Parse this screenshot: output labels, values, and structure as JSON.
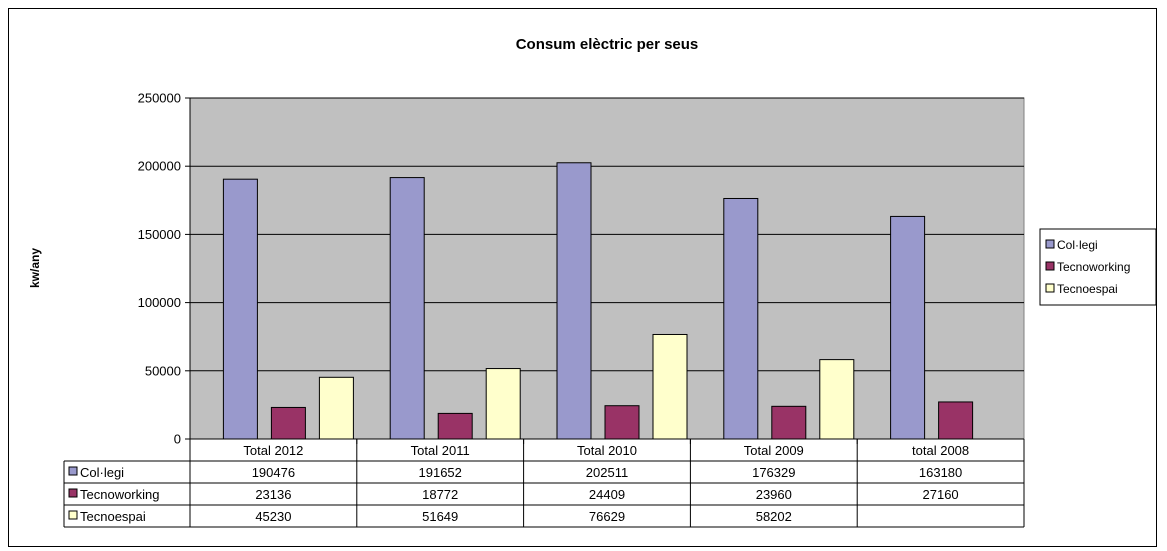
{
  "chart_data": {
    "type": "bar",
    "title": "Consum elèctric per seus",
    "ylabel": "kw/any",
    "xlabel": "",
    "ylim": [
      0,
      250000
    ],
    "yticks": [
      0,
      50000,
      100000,
      150000,
      200000,
      250000
    ],
    "grid": true,
    "legend_position": "right",
    "data_table": true,
    "plot_background": "#c0c0c0",
    "categories": [
      "Total 2012",
      "Total 2011",
      "Total 2010",
      "Total 2009",
      "total 2008"
    ],
    "series": [
      {
        "name": "Col·legi",
        "color": "#9999cc",
        "values": [
          190476,
          191652,
          202511,
          176329,
          163180
        ]
      },
      {
        "name": "Tecnoworking",
        "color": "#993366",
        "values": [
          23136,
          18772,
          24409,
          23960,
          27160
        ]
      },
      {
        "name": "Tecnoespai",
        "color": "#ffffcc",
        "values": [
          45230,
          51649,
          76629,
          58202,
          null
        ]
      }
    ]
  }
}
